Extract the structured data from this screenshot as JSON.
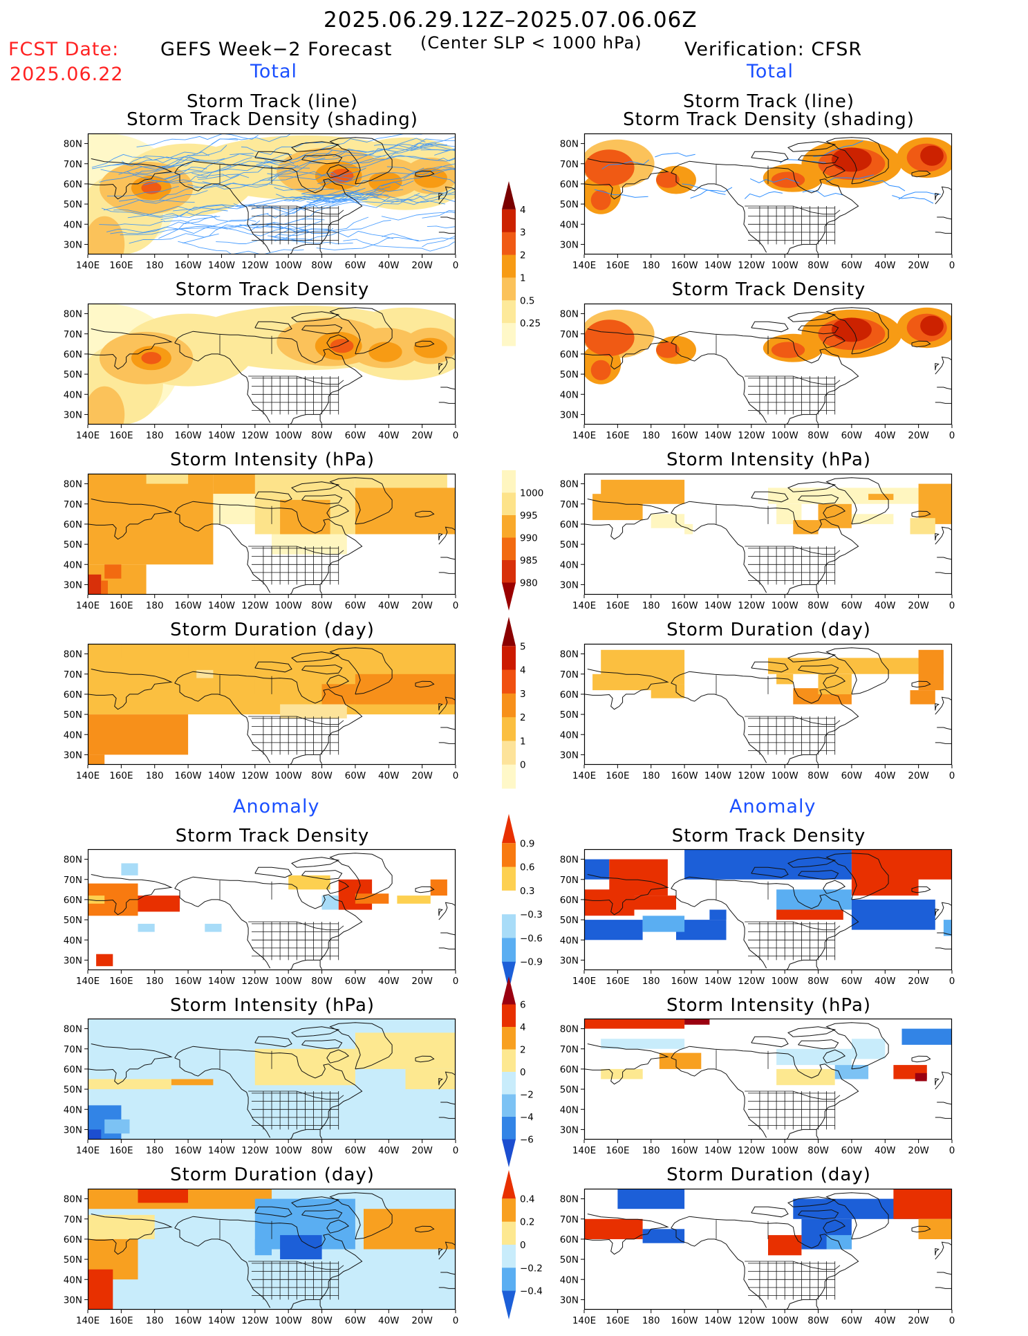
{
  "header": {
    "date_range": "2025.06.29.12Z–2025.07.06.06Z",
    "fcst_label": "FCST Date:",
    "fcst_date": "2025.06.22",
    "left_title": "GEFS Week−2 Forecast",
    "center_note": "(Center SLP < 1000 hPa)",
    "right_title": "Verification: CFSR",
    "total_label": "Total",
    "anomaly_label": "Anomaly"
  },
  "axes": {
    "x_ticks": [
      "140E",
      "160E",
      "180",
      "160W",
      "140W",
      "120W",
      "100W",
      "80W",
      "60W",
      "40W",
      "20W",
      "0"
    ],
    "y_ticks": [
      "80N",
      "70N",
      "60N",
      "50N",
      "40N",
      "30N"
    ]
  },
  "panels": {
    "row1_title_line1": "Storm Track (line)",
    "row1_title_line2": "Storm Track Density (shading)",
    "density": "Storm Track Density",
    "intensity": "Storm Intensity (hPa)",
    "duration": "Storm Duration (day)"
  },
  "colorbars": {
    "density": {
      "labels": [
        "4",
        "3",
        "2",
        "1",
        "0.5",
        "0.25"
      ],
      "colors": [
        "#7a0000",
        "#cc2200",
        "#f05a14",
        "#f79b14",
        "#fbc25a",
        "#fde99a",
        "#fff8c8"
      ]
    },
    "intensity": {
      "labels": [
        "1000",
        "995",
        "990",
        "985",
        "980"
      ],
      "colors": [
        "#fff6c0",
        "#fde38a",
        "#f9a92a",
        "#f26a10",
        "#d8300a",
        "#9a0000"
      ]
    },
    "duration": {
      "labels": [
        "5",
        "4",
        "3",
        "2",
        "1",
        "0"
      ],
      "colors": [
        "#8a0000",
        "#cc1a00",
        "#f05010",
        "#f7901a",
        "#fbbf40",
        "#fde39a",
        "#fff8c8"
      ]
    },
    "anom_density": {
      "labels": [
        "0.9",
        "0.6",
        "0.3",
        "−0.3",
        "−0.6",
        "−0.9"
      ],
      "colors": [
        "#e83000",
        "#f87a10",
        "#fdd050",
        "#ffffff",
        "#a8dcf8",
        "#5aaef2",
        "#1c5fd8"
      ]
    },
    "anom_intensity": {
      "labels": [
        "6",
        "4",
        "2",
        "0",
        "−2",
        "−4",
        "−6"
      ],
      "colors": [
        "#9a0010",
        "#e83000",
        "#f8a020",
        "#fde890",
        "#c8ecfb",
        "#7cc2f4",
        "#3284e6",
        "#1c4ed0"
      ]
    },
    "anom_duration": {
      "labels": [
        "0.4",
        "0.2",
        "0",
        "−0.2",
        "−0.4"
      ],
      "colors": [
        "#e83000",
        "#f8a020",
        "#fde890",
        "#c8ecfb",
        "#5aaef2",
        "#1c5fd8"
      ]
    }
  },
  "colors": {
    "land_outline": "#111111",
    "track_line": "#2a8cff",
    "ocean": "#ffffff"
  }
}
